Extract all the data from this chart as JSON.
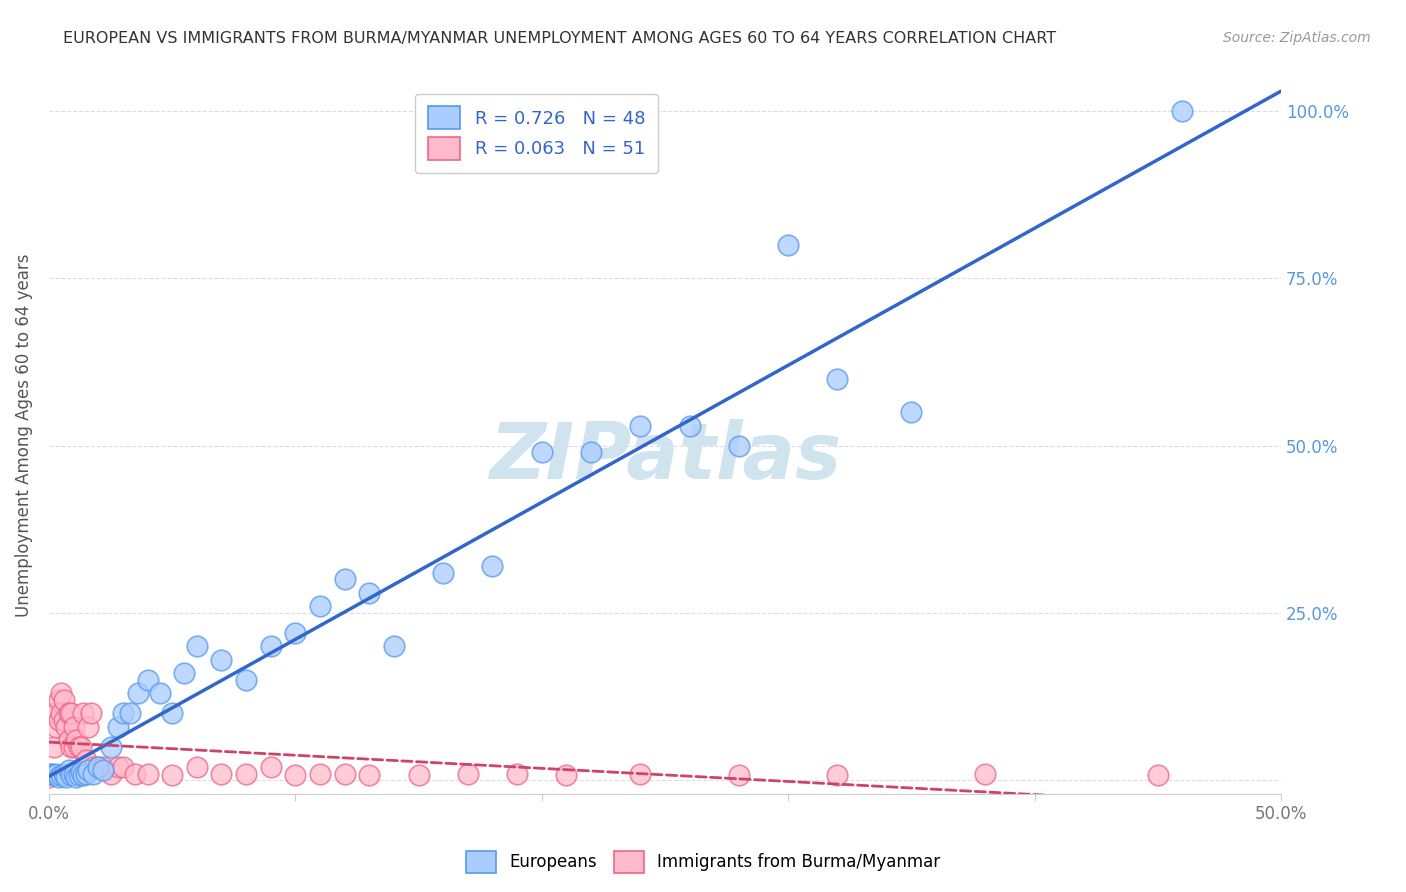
{
  "title": "EUROPEAN VS IMMIGRANTS FROM BURMA/MYANMAR UNEMPLOYMENT AMONG AGES 60 TO 64 YEARS CORRELATION CHART",
  "source": "Source: ZipAtlas.com",
  "ylabel": "Unemployment Among Ages 60 to 64 years",
  "xlim": [
    0.0,
    0.5
  ],
  "ylim": [
    -0.02,
    1.05
  ],
  "xticks": [
    0.0,
    0.1,
    0.2,
    0.3,
    0.4,
    0.5
  ],
  "xticklabels": [
    "0.0%",
    "",
    "",
    "",
    "",
    "50.0%"
  ],
  "yticks": [
    0.0,
    0.25,
    0.5,
    0.75,
    1.0
  ],
  "yticklabels": [
    "",
    "25.0%",
    "50.0%",
    "75.0%",
    "100.0%"
  ],
  "europeans_color": "#aaccff",
  "burma_color": "#ffbbcc",
  "europeans_edge_color": "#5599ee",
  "burma_edge_color": "#ee6688",
  "europeans_line_color": "#3366cc",
  "burma_line_color": "#cc4466",
  "watermark": "ZIPatlas",
  "watermark_color": "#d0e4f0",
  "background_color": "#ffffff",
  "grid_color": "#dddddd",
  "title_color": "#333333",
  "legend_eu_label": "R = 0.726   N = 48",
  "legend_bu_label": "R = 0.063   N = 51",
  "bottom_legend_eu": "Europeans",
  "bottom_legend_bu": "Immigrants from Burma/Myanmar",
  "europeans_x": [
    0.001,
    0.002,
    0.003,
    0.004,
    0.005,
    0.006,
    0.007,
    0.008,
    0.009,
    0.01,
    0.011,
    0.012,
    0.013,
    0.014,
    0.015,
    0.016,
    0.018,
    0.02,
    0.022,
    0.025,
    0.028,
    0.03,
    0.033,
    0.036,
    0.04,
    0.045,
    0.05,
    0.055,
    0.06,
    0.07,
    0.08,
    0.09,
    0.1,
    0.11,
    0.12,
    0.13,
    0.14,
    0.16,
    0.18,
    0.2,
    0.22,
    0.24,
    0.26,
    0.28,
    0.3,
    0.32,
    0.35,
    0.46
  ],
  "europeans_y": [
    0.01,
    0.008,
    0.01,
    0.005,
    0.008,
    0.01,
    0.005,
    0.015,
    0.008,
    0.01,
    0.005,
    0.008,
    0.012,
    0.008,
    0.01,
    0.015,
    0.01,
    0.02,
    0.015,
    0.05,
    0.08,
    0.1,
    0.1,
    0.13,
    0.15,
    0.13,
    0.1,
    0.16,
    0.2,
    0.18,
    0.15,
    0.2,
    0.22,
    0.26,
    0.3,
    0.28,
    0.2,
    0.31,
    0.32,
    0.49,
    0.49,
    0.53,
    0.53,
    0.5,
    0.8,
    0.6,
    0.55,
    1.0
  ],
  "burma_x": [
    0.0,
    0.001,
    0.002,
    0.003,
    0.003,
    0.004,
    0.004,
    0.005,
    0.005,
    0.006,
    0.006,
    0.007,
    0.008,
    0.008,
    0.009,
    0.009,
    0.01,
    0.01,
    0.011,
    0.012,
    0.013,
    0.014,
    0.015,
    0.016,
    0.017,
    0.018,
    0.02,
    0.022,
    0.025,
    0.028,
    0.03,
    0.035,
    0.04,
    0.05,
    0.06,
    0.07,
    0.08,
    0.09,
    0.1,
    0.11,
    0.12,
    0.13,
    0.15,
    0.17,
    0.19,
    0.21,
    0.24,
    0.28,
    0.32,
    0.38,
    0.45
  ],
  "burma_y": [
    0.005,
    0.01,
    0.05,
    0.08,
    0.1,
    0.09,
    0.12,
    0.1,
    0.13,
    0.09,
    0.12,
    0.08,
    0.1,
    0.06,
    0.1,
    0.05,
    0.08,
    0.05,
    0.06,
    0.05,
    0.05,
    0.1,
    0.03,
    0.08,
    0.1,
    0.02,
    0.02,
    0.02,
    0.01,
    0.02,
    0.02,
    0.01,
    0.01,
    0.008,
    0.02,
    0.01,
    0.01,
    0.02,
    0.008,
    0.01,
    0.01,
    0.008,
    0.008,
    0.01,
    0.01,
    0.008,
    0.01,
    0.008,
    0.008,
    0.01,
    0.008
  ]
}
